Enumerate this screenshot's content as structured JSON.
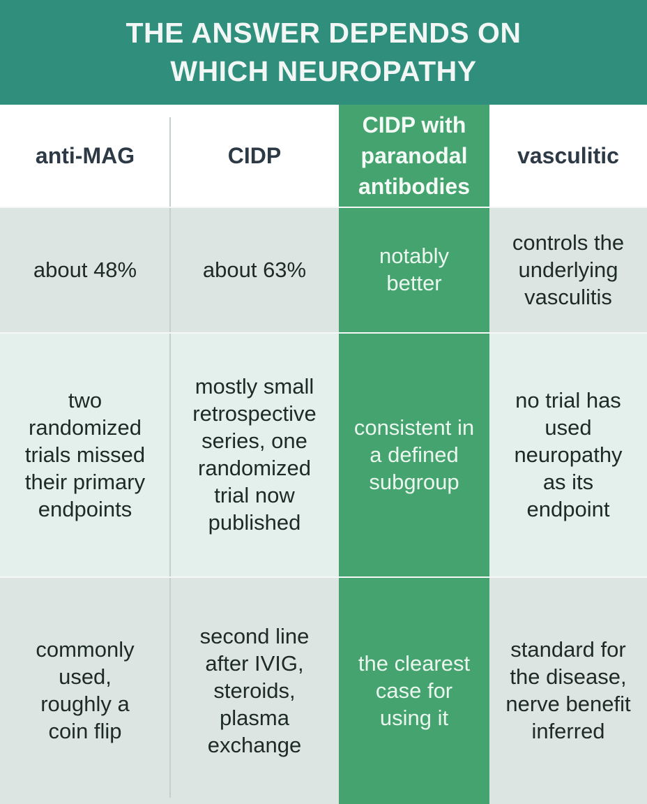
{
  "header": {
    "title": "THE ANSWER DEPENDS ON\nWHICH NEUROPATHY"
  },
  "colors": {
    "header_bg": "#2f8f7c",
    "highlight_column": "#45a36f",
    "row_gray": "#dde5e3",
    "row_mint": "#e4f0eb"
  },
  "columns": [
    "anti-MAG",
    "CIDP",
    "CIDP with paranodal antibodies",
    "vasculitic"
  ],
  "rows": [
    [
      "about 48%",
      "about 63%",
      "notably better",
      "controls the underlying vasculitis"
    ],
    [
      "two randomized trials missed their primary endpoints",
      "mostly small retrospective series, one randomized trial now published",
      "consistent in a defined subgroup",
      "no trial has used neuropathy as its endpoint"
    ],
    [
      "commonly used, roughly a coin flip",
      "second line after IVIG, steroids, plasma exchange",
      "the clearest case for using it",
      "standard for the disease, nerve benefit inferred"
    ]
  ]
}
